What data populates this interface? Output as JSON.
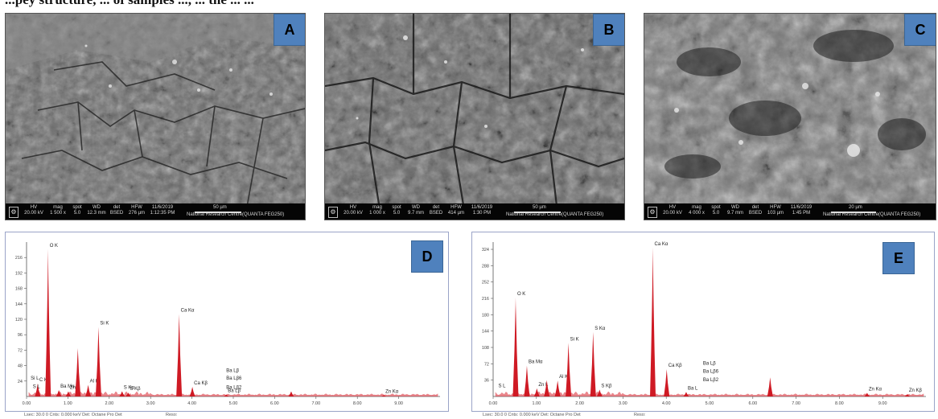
{
  "caption": "...pey structure, ... of samples ..., ... the ... ...",
  "panels": {
    "A": "A",
    "B": "B",
    "C": "C",
    "D": "D",
    "E": "E"
  },
  "sem": {
    "A": {
      "fields": [
        {
          "head": "HV",
          "val": "20.00 kV"
        },
        {
          "head": "mag",
          "val": "1 500 x"
        },
        {
          "head": "spot",
          "val": "5.0"
        },
        {
          "head": "WD",
          "val": "12.3 mm"
        },
        {
          "head": "det",
          "val": "BSED"
        },
        {
          "head": "HFW",
          "val": "276 µm"
        },
        {
          "head": "11/6/2019",
          "val": "1:12:35 PM"
        }
      ],
      "scale": "50 µm",
      "lab": "National Research Centre(QUANTA FEG250)"
    },
    "B": {
      "fields": [
        {
          "head": "HV",
          "val": "20.00 kV"
        },
        {
          "head": "mag",
          "val": "1 000 x"
        },
        {
          "head": "spot",
          "val": "5.0"
        },
        {
          "head": "WD",
          "val": "9.7 mm"
        },
        {
          "head": "det",
          "val": "BSED"
        },
        {
          "head": "HFW",
          "val": "414 µm"
        },
        {
          "head": "11/6/2019",
          "val": "1:30 PM"
        }
      ],
      "scale": "50 µm",
      "lab": "National Research Centre(QUANTA FEG250)"
    },
    "C": {
      "fields": [
        {
          "head": "HV",
          "val": "20.00 kV"
        },
        {
          "head": "mag",
          "val": "4 000 x"
        },
        {
          "head": "spot",
          "val": "5.0"
        },
        {
          "head": "WD",
          "val": "9.7 mm"
        },
        {
          "head": "det",
          "val": "BSED"
        },
        {
          "head": "HFW",
          "val": "103 µm"
        },
        {
          "head": "11/6/2019",
          "val": "1:45 PM"
        }
      ],
      "scale": "20 µm",
      "lab": "National Research Centre(QUANTA FEG250)"
    }
  },
  "chart_data": [
    {
      "type": "line",
      "panel": "D",
      "xlim": [
        0,
        10
      ],
      "ylim": [
        0,
        240
      ],
      "xticks": [
        "0.00",
        "1.00",
        "2.00",
        "3.00",
        "4.00",
        "5.00",
        "6.00",
        "7.00",
        "8.00",
        "9.00"
      ],
      "yticks": [
        "24",
        "48",
        "72",
        "96",
        "120",
        "144",
        "168",
        "192",
        "216"
      ],
      "peaks": [
        {
          "label": "C K",
          "x": 0.27,
          "y": 20
        },
        {
          "label": "O K",
          "x": 0.52,
          "y": 229
        },
        {
          "label": "Ba Mα",
          "x": 0.78,
          "y": 10
        },
        {
          "label": "Zn L",
          "x": 1.01,
          "y": 8
        },
        {
          "label": "",
          "x": 1.24,
          "y": 75
        },
        {
          "label": "Al K",
          "x": 1.49,
          "y": 18
        },
        {
          "label": "Si K",
          "x": 1.74,
          "y": 108
        },
        {
          "label": "",
          "x": 2.31,
          "y": 8
        },
        {
          "label": "S Kα",
          "x": 2.31,
          "y": 8
        },
        {
          "label": "S Kβ",
          "x": 2.46,
          "y": 6
        },
        {
          "label": "Ca Kα",
          "x": 3.69,
          "y": 128
        },
        {
          "label": "Ca Kβ",
          "x": 4.01,
          "y": 15
        },
        {
          "label": "Ba Lβ",
          "x": 4.83,
          "y": 3
        },
        {
          "label": "",
          "x": 6.4,
          "y": 8
        },
        {
          "label": "Zn Kα",
          "x": 8.64,
          "y": 2
        }
      ],
      "annotations": [
        {
          "label": "Si L",
          "x": 0.1,
          "y": 26
        },
        {
          "label": "S L",
          "x": 0.15,
          "y": 13
        },
        {
          "label": "Ba Lβ",
          "x": 4.83,
          "y": 38
        },
        {
          "label": "Ba Lβ6",
          "x": 4.83,
          "y": 26
        },
        {
          "label": "Ba Lβ2",
          "x": 4.83,
          "y": 12
        }
      ],
      "footer": "Lsec: 30.0 0 Cnts: 0.000 keV Det: Octane Pro Det",
      "footer2": "Reso:"
    },
    {
      "type": "line",
      "panel": "E",
      "xlim": [
        0,
        10
      ],
      "ylim": [
        0,
        340
      ],
      "xticks": [
        "0.00",
        "1.00",
        "2.00",
        "3.00",
        "4.00",
        "5.00",
        "6.00",
        "7.00",
        "8.00",
        "9.00"
      ],
      "yticks": [
        "36",
        "72",
        "108",
        "144",
        "180",
        "216",
        "252",
        "288",
        "324"
      ],
      "peaks": [
        {
          "label": "O K",
          "x": 0.52,
          "y": 218
        },
        {
          "label": "Ba Mα",
          "x": 0.78,
          "y": 68
        },
        {
          "label": "Zn L",
          "x": 1.01,
          "y": 18
        },
        {
          "label": "",
          "x": 1.24,
          "y": 36
        },
        {
          "label": "Al K",
          "x": 1.49,
          "y": 35
        },
        {
          "label": "Si K",
          "x": 1.74,
          "y": 118
        },
        {
          "label": "S Kα",
          "x": 2.31,
          "y": 142
        },
        {
          "label": "S Kβ",
          "x": 2.46,
          "y": 15
        },
        {
          "label": "Ca Kα",
          "x": 3.69,
          "y": 328
        },
        {
          "label": "Ca Kβ",
          "x": 4.01,
          "y": 60
        },
        {
          "label": "Ba L",
          "x": 4.46,
          "y": 10
        },
        {
          "label": "",
          "x": 6.4,
          "y": 42
        },
        {
          "label": "Zn Kα",
          "x": 8.64,
          "y": 8
        },
        {
          "label": "Zn Kβ",
          "x": 9.57,
          "y": 5
        }
      ],
      "annotations": [
        {
          "label": "S L",
          "x": 0.12,
          "y": 20
        },
        {
          "label": "Ba Lβ",
          "x": 4.85,
          "y": 70
        },
        {
          "label": "Ba Lβ6",
          "x": 4.85,
          "y": 52
        },
        {
          "label": "Ba Lβ2",
          "x": 4.85,
          "y": 34
        }
      ],
      "footer": "Lsec: 30.0 0 Cnts: 0.000 keV Det: Octane Pro Det",
      "footer2": "Reso:"
    }
  ]
}
